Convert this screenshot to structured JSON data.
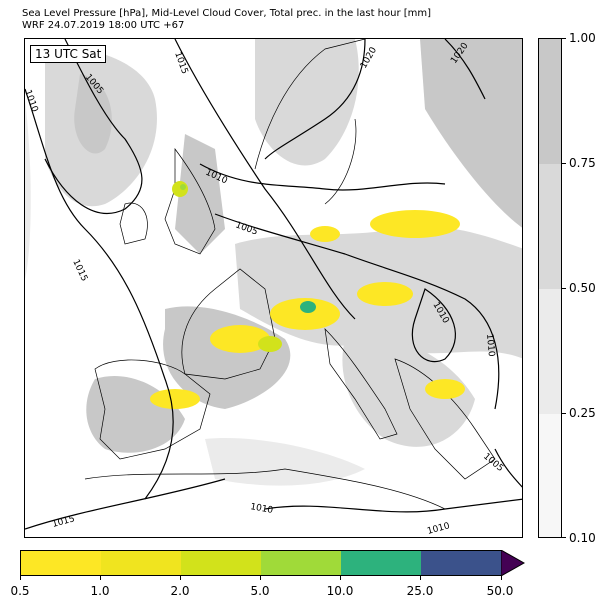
{
  "title_line1": "Sea Level Pressure [hPa], Mid-Level Cloud Cover, Total prec. in the last hour [mm]",
  "title_line2": "WRF 24.07.2019 18:00 UTC +67",
  "time_label": "13 UTC Sat",
  "isobar_labels": [
    "1015",
    "1005",
    "1010",
    "1010",
    "1005",
    "1015",
    "1020",
    "1020",
    "1010",
    "1010",
    "1005",
    "1010",
    "1015",
    "1010"
  ],
  "cloud_colorbar": {
    "ticks": [
      "1.00",
      "0.75",
      "0.50",
      "0.25",
      "0.10"
    ],
    "colors": [
      "#c8c8c8",
      "#d9d9d9",
      "#ebebeb",
      "#f7f7f7"
    ]
  },
  "precip_colorbar": {
    "ticks": [
      "0.5",
      "1.0",
      "2.0",
      "5.0",
      "10.0",
      "25.0",
      "50.0"
    ],
    "colors": [
      "#fde725",
      "#f0e41f",
      "#d2e21b",
      "#a0da39",
      "#2db27d",
      "#3b528b"
    ],
    "extend_color": "#440154"
  },
  "colors": {
    "land_line": "#000000",
    "isobar": "#000000",
    "cloud_heavy": "#c8c8c8",
    "cloud_mid": "#d9d9d9",
    "cloud_light": "#ebebeb",
    "precip_light": "#fde725",
    "precip_mid": "#d2e21b",
    "precip_heavy": "#2db27d"
  }
}
